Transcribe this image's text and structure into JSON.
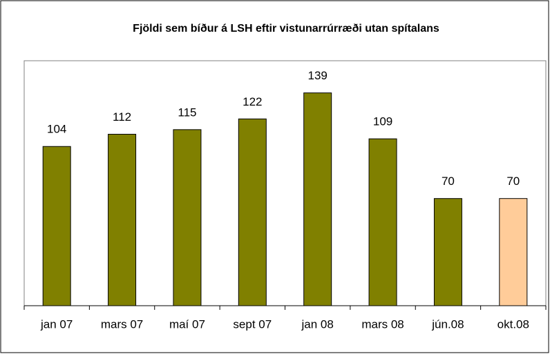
{
  "chart_data": {
    "type": "bar",
    "title": "Fjöldi sem bíður á LSH eftir vistunarrúrræði utan spítalans",
    "categories": [
      "jan 07",
      "mars 07",
      "maí 07",
      "sept 07",
      "jan 08",
      "mars 08",
      "jún.08",
      "okt.08"
    ],
    "values": [
      104,
      112,
      115,
      122,
      139,
      109,
      70,
      70
    ],
    "colors": [
      "#808000",
      "#808000",
      "#808000",
      "#808000",
      "#808000",
      "#808000",
      "#808000",
      "#ffcc99"
    ],
    "ylim": [
      0,
      160
    ]
  }
}
